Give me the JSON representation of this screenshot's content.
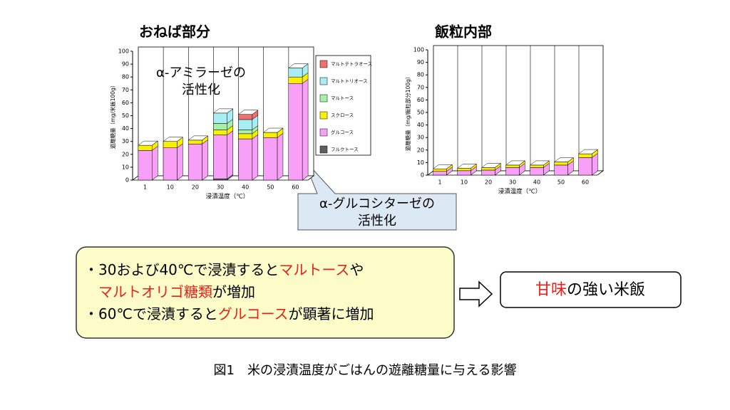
{
  "chart_data": [
    {
      "type": "bar",
      "stacked": true,
      "title": "おねば部分",
      "x_label": "浸漬温度（℃）",
      "y_label": "遊離糖量（mg/米飯100g）",
      "categories": [
        "1",
        "10",
        "20",
        "30",
        "40",
        "50",
        "60"
      ],
      "series": [
        {
          "name": "フルクトース",
          "color": "#606060",
          "values": [
            0,
            0,
            0,
            1,
            0,
            0,
            0
          ]
        },
        {
          "name": "グルコース",
          "color": "#f8a0f8",
          "values": [
            23,
            25,
            28,
            34,
            32,
            33,
            75
          ]
        },
        {
          "name": "スクロース",
          "color": "#f8f000",
          "values": [
            4,
            5,
            3,
            4,
            4,
            4,
            5
          ]
        },
        {
          "name": "マルトース",
          "color": "#a8f0a8",
          "values": [
            0,
            0,
            0,
            5,
            3,
            0,
            0
          ]
        },
        {
          "name": "マルトトリオース",
          "color": "#a8ecf4",
          "values": [
            0,
            0,
            0,
            8,
            8,
            0,
            7
          ]
        },
        {
          "name": "マルトテトラオース",
          "color": "#f07070",
          "values": [
            0,
            0,
            0,
            0,
            4,
            0,
            0
          ]
        }
      ],
      "ylim": [
        0,
        100
      ],
      "yticks": [
        0,
        10,
        20,
        30,
        40,
        50,
        60,
        70,
        80,
        90,
        100
      ],
      "legend": "right"
    },
    {
      "type": "bar",
      "stacked": true,
      "title": "飯粒内部",
      "x_label": "浸漬温度（℃）",
      "y_label": "遊離糖量（mg/飯粒部分100g）",
      "categories": [
        "1",
        "10",
        "20",
        "30",
        "40",
        "50",
        "60"
      ],
      "series": [
        {
          "name": "フルクトース",
          "color": "#606060",
          "values": [
            0,
            0,
            0,
            0,
            0,
            0,
            0
          ]
        },
        {
          "name": "グルコース",
          "color": "#f8a0f8",
          "values": [
            3,
            3.5,
            4,
            6,
            6,
            8,
            14
          ]
        },
        {
          "name": "スクロース",
          "color": "#f8f000",
          "values": [
            2,
            2,
            2,
            2,
            2,
            2.5,
            3
          ]
        },
        {
          "name": "マルトース",
          "color": "#a8f0a8",
          "values": [
            0,
            0,
            0,
            0,
            0,
            0,
            0
          ]
        },
        {
          "name": "マルトトリオース",
          "color": "#a8ecf4",
          "values": [
            0,
            0,
            0,
            0,
            0,
            0,
            0
          ]
        },
        {
          "name": "マルトテトラオース",
          "color": "#f07070",
          "values": [
            0,
            0,
            0,
            0,
            0,
            0,
            0
          ]
        }
      ],
      "ylim": [
        0,
        100
      ],
      "yticks": [
        0,
        10,
        20,
        30,
        40,
        50,
        60,
        70,
        80,
        90,
        100
      ]
    }
  ],
  "callouts": [
    {
      "lines": [
        "α-アミラーゼの",
        "活性化"
      ]
    },
    {
      "lines": [
        "α-グルコシターゼの",
        "活性化"
      ]
    }
  ],
  "summary": {
    "lines": [
      [
        {
          "text": "・30および40℃で浸漬すると",
          "color": "#000000"
        },
        {
          "text": "マルトース",
          "color": "#e8201c"
        },
        {
          "text": "や",
          "color": "#000000"
        }
      ],
      [
        {
          "text": "マルトオリゴ糖類",
          "color": "#e8201c"
        },
        {
          "text": "が増加",
          "color": "#000000"
        }
      ],
      [
        {
          "text": "・60℃で浸漬すると",
          "color": "#000000"
        },
        {
          "text": "グルコース",
          "color": "#e8201c"
        },
        {
          "text": "が顕著に増加",
          "color": "#000000"
        }
      ]
    ]
  },
  "result": [
    {
      "text": "甘味",
      "color": "#e8201c"
    },
    {
      "text": "の強い米飯",
      "color": "#000000"
    }
  ],
  "caption": "図1　米の浸漬温度がごはんの遊離糖量に与える影響"
}
